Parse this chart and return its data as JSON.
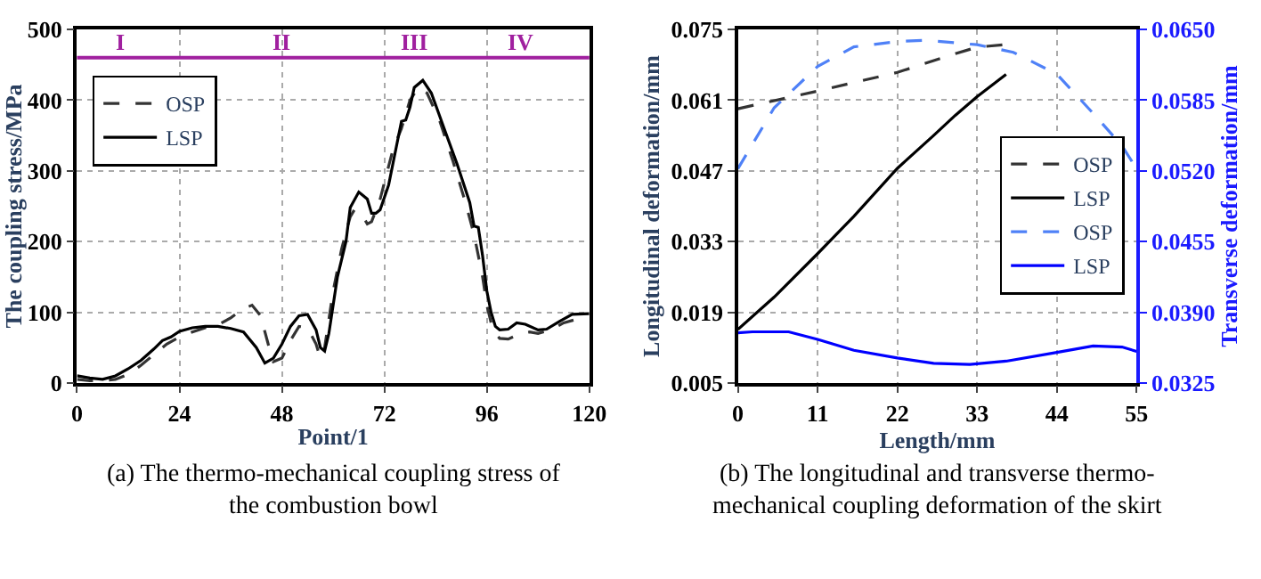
{
  "chart_data": [
    {
      "type": "line",
      "xlabel": "Point/1",
      "ylabel": "The coupling stress/MPa",
      "xlim": [
        0,
        120
      ],
      "xticks": [
        0,
        24,
        48,
        72,
        96,
        120
      ],
      "ylim": [
        0,
        500
      ],
      "yticks": [
        0,
        100,
        200,
        300,
        400,
        500
      ],
      "grid": true,
      "legend": "top left",
      "marker": "none",
      "series": [
        {
          "name": "OSP",
          "color": "#333333",
          "line_style": "dashed",
          "x": [
            0,
            3,
            6,
            9,
            12,
            15,
            18,
            21,
            24,
            27,
            30,
            33,
            36,
            39,
            41,
            43,
            45,
            46,
            48,
            50,
            52,
            54,
            56,
            57,
            58,
            60,
            62,
            64,
            65,
            67,
            68,
            69,
            71,
            74,
            76,
            78,
            80,
            82,
            85,
            88,
            91,
            93,
            95,
            96,
            97,
            98,
            99,
            101,
            104,
            106,
            108,
            111,
            114,
            117,
            120
          ],
          "values": [
            5,
            3,
            3,
            5,
            12,
            25,
            40,
            55,
            65,
            72,
            78,
            82,
            92,
            105,
            110,
            95,
            50,
            30,
            35,
            60,
            80,
            78,
            55,
            35,
            50,
            130,
            190,
            235,
            245,
            235,
            225,
            228,
            260,
            330,
            360,
            400,
            418,
            410,
            370,
            315,
            255,
            210,
            150,
            110,
            85,
            70,
            63,
            62,
            70,
            72,
            70,
            75,
            85,
            90,
            92
          ]
        },
        {
          "name": "LSP",
          "color": "#000000",
          "line_style": "solid",
          "x": [
            0,
            3,
            6,
            9,
            12,
            15,
            18,
            20,
            22,
            24,
            27,
            30,
            33,
            36,
            39,
            42,
            44,
            46,
            48,
            50,
            52,
            54,
            56,
            57,
            58,
            59,
            61,
            63,
            64,
            66,
            67,
            68,
            69,
            70,
            71,
            73,
            75,
            76,
            77,
            78,
            79,
            81,
            83,
            86,
            89,
            92,
            93,
            94,
            95,
            96,
            97,
            98,
            99,
            101,
            103,
            105,
            108,
            110,
            113,
            116,
            120
          ],
          "values": [
            10,
            7,
            5,
            10,
            20,
            32,
            48,
            60,
            65,
            73,
            78,
            80,
            80,
            77,
            72,
            50,
            28,
            35,
            55,
            80,
            95,
            97,
            75,
            50,
            45,
            70,
            150,
            200,
            248,
            270,
            265,
            260,
            240,
            240,
            245,
            280,
            340,
            370,
            372,
            390,
            418,
            428,
            410,
            360,
            310,
            255,
            222,
            220,
            180,
            130,
            100,
            80,
            75,
            76,
            85,
            83,
            75,
            76,
            87,
            97,
            98
          ]
        }
      ],
      "ref_lines": [
        {
          "axis": "y",
          "value": 460,
          "label": null,
          "color": "#a0209f"
        }
      ],
      "annotations": [
        "I",
        "II",
        "III",
        "IV",
        "(a) The thermo-mechanical coupling stress of the combustion bowl"
      ]
    },
    {
      "type": "line",
      "xlabel": "Length/mm",
      "ylabel": "Longitudinal deformation/mm",
      "y2label": "Transverse deformation/mm",
      "xlim": [
        0,
        55
      ],
      "xticks": [
        0,
        11,
        22,
        33,
        44,
        55
      ],
      "ylim": [
        0.005,
        0.075
      ],
      "yticks": [
        0.005,
        0.019,
        0.033,
        0.047,
        0.061,
        0.075
      ],
      "y2lim": [
        0.0325,
        0.065
      ],
      "y2ticks": [
        0.0325,
        {
          "value": 0.039,
          "label": "0.0390"
        },
        0.0455,
        {
          "value": 0.052,
          "label": "0.0520"
        },
        0.0585,
        {
          "value": 0.065,
          "label": "0.0650"
        }
      ],
      "grid": true,
      "legend": "bottom right",
      "marker": "none",
      "series": [
        {
          "name": "OSP",
          "color": "#333333",
          "line_style": "dashed",
          "x": [
            0,
            11,
            22,
            30,
            33,
            37
          ],
          "values": [
            0.0593,
            0.0628,
            0.0665,
            0.0702,
            0.0715,
            0.072
          ]
        },
        {
          "name": "LSP",
          "color": "#000000",
          "line_style": "solid",
          "x": [
            0,
            5,
            11,
            16,
            22,
            27,
            30,
            33,
            37
          ],
          "values": [
            0.0156,
            0.022,
            0.0306,
            0.038,
            0.0475,
            0.054,
            0.058,
            0.0617,
            0.0661
          ]
        },
        {
          "name": "OSP",
          "color": "#4f81f7",
          "line_style": "dashed",
          "axis": "y2",
          "x": [
            0,
            5,
            11,
            16,
            22,
            26,
            33,
            38,
            44,
            49,
            53,
            55
          ],
          "values": [
            0.0522,
            0.0578,
            0.0616,
            0.0634,
            0.0639,
            0.064,
            0.0636,
            0.0629,
            0.0609,
            0.0573,
            0.0543,
            0.0522
          ]
        },
        {
          "name": "LSP",
          "color": "#0000ff",
          "line_style": "solid",
          "axis": "y2",
          "x": [
            0,
            2,
            7,
            11,
            16,
            22,
            27,
            32,
            37,
            44,
            49,
            53,
            55
          ],
          "values": [
            0.0371,
            0.0372,
            0.0372,
            0.0365,
            0.0355,
            0.0348,
            0.0343,
            0.0342,
            0.0345,
            0.0353,
            0.0359,
            0.0358,
            0.0354
          ]
        }
      ],
      "annotations": [
        "(b) The longitudinal and transverse thermo-mechanical coupling deformation of the skirt"
      ]
    }
  ]
}
